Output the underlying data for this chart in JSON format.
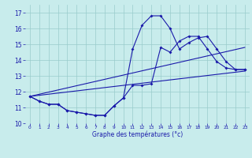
{
  "xlabel": "Graphe des températures (°c)",
  "background_color": "#c8ecec",
  "line_color": "#1a1aaa",
  "grid_color": "#99cccc",
  "xlim": [
    -0.5,
    23.5
  ],
  "ylim": [
    10.0,
    17.5
  ],
  "yticks": [
    10,
    11,
    12,
    13,
    14,
    15,
    16,
    17
  ],
  "xticks": [
    0,
    1,
    2,
    3,
    4,
    5,
    6,
    7,
    8,
    9,
    10,
    11,
    12,
    13,
    14,
    15,
    16,
    17,
    18,
    19,
    20,
    21,
    22,
    23
  ],
  "curve1_x": [
    0,
    1,
    2,
    3,
    4,
    5,
    6,
    7,
    8,
    9,
    10,
    11,
    12,
    13,
    14,
    15,
    16,
    17,
    18,
    19,
    20,
    21,
    22,
    23
  ],
  "curve1_y": [
    11.7,
    11.4,
    11.2,
    11.2,
    10.8,
    10.7,
    10.6,
    10.5,
    10.5,
    11.1,
    11.6,
    12.4,
    12.4,
    12.5,
    14.8,
    14.5,
    15.2,
    15.5,
    15.5,
    14.7,
    13.9,
    13.5,
    13.4,
    13.4
  ],
  "curve2_x": [
    0,
    1,
    2,
    3,
    4,
    5,
    6,
    7,
    8,
    9,
    10,
    11,
    12,
    13,
    14,
    15,
    16,
    17,
    18,
    19,
    20,
    21,
    22,
    23
  ],
  "curve2_y": [
    11.7,
    11.4,
    11.2,
    11.2,
    10.8,
    10.7,
    10.6,
    10.5,
    10.5,
    11.1,
    11.6,
    14.7,
    16.2,
    16.8,
    16.8,
    16.0,
    14.7,
    15.1,
    15.4,
    15.5,
    14.7,
    13.9,
    13.4,
    13.4
  ],
  "line3_x": [
    0,
    23
  ],
  "line3_y": [
    11.7,
    14.8
  ],
  "line4_x": [
    0,
    23
  ],
  "line4_y": [
    11.7,
    13.3
  ]
}
